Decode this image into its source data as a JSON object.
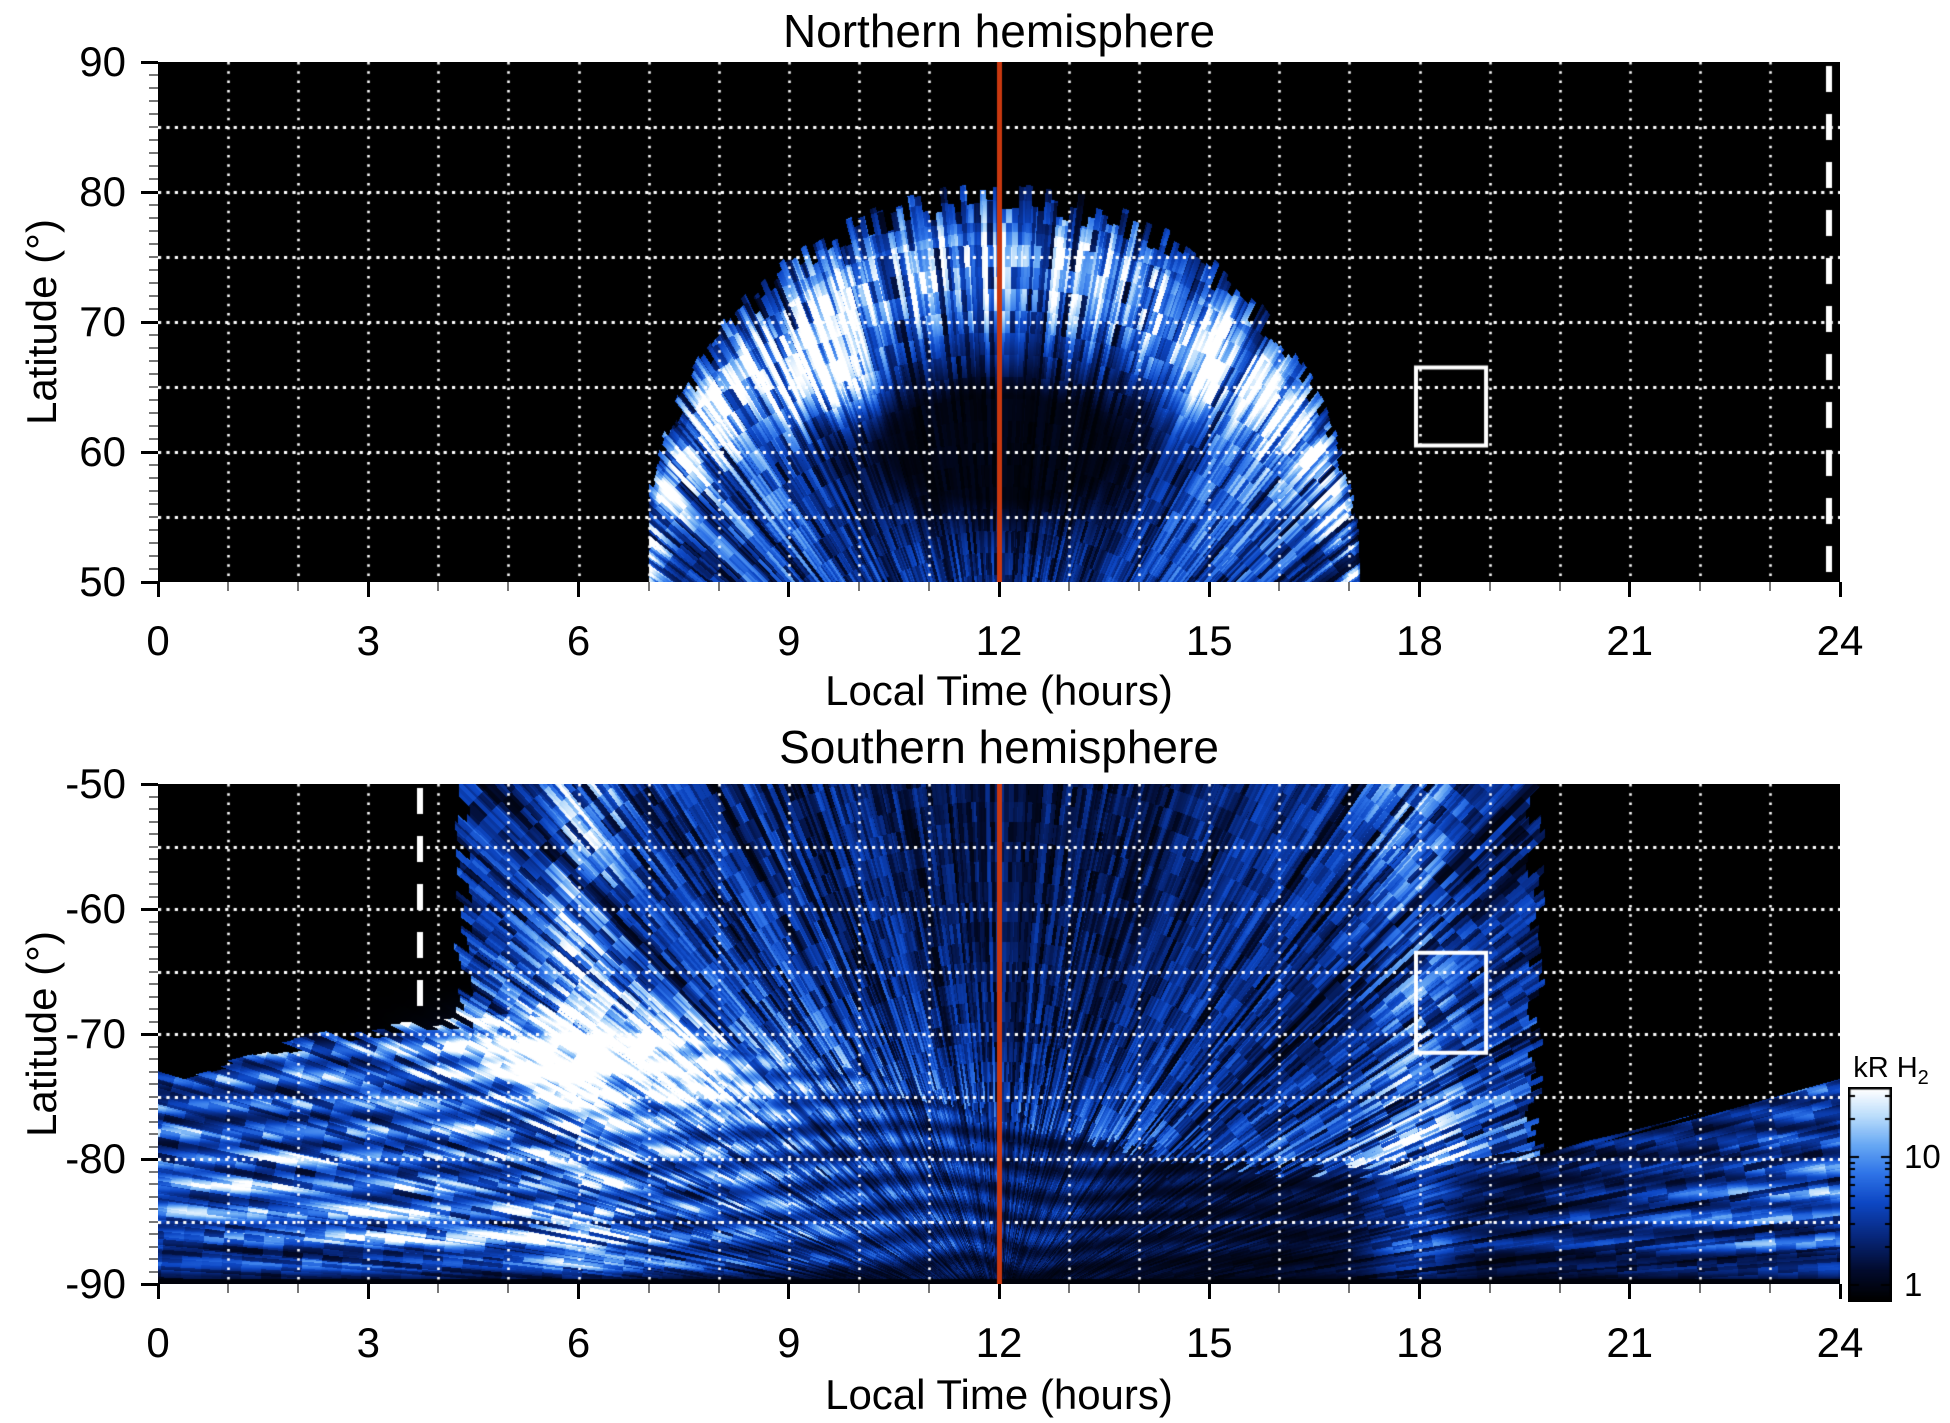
{
  "page": {
    "background": "#ffffff"
  },
  "chart_data": [
    {
      "panel": "north",
      "type": "heatmap",
      "title": "Northern hemisphere",
      "xlabel": "Local Time (hours)",
      "ylabel": "Latitude (°)",
      "xlim": [
        0,
        24
      ],
      "ylim": [
        50,
        90
      ],
      "x_tick_values": [
        0,
        3,
        6,
        9,
        12,
        15,
        18,
        21,
        24
      ],
      "x_tick_labels": [
        "0",
        "3",
        "6",
        "9",
        "12",
        "15",
        "18",
        "21",
        "24"
      ],
      "x_minor_step_hours": 1,
      "y_tick_values": [
        90,
        80,
        70,
        60,
        50
      ],
      "y_tick_labels": [
        "90",
        "80",
        "70",
        "60",
        "50"
      ],
      "y_minor_step_deg": 1,
      "grid": {
        "x_step_hours": 1,
        "y_step_deg": 5,
        "style": "dotted",
        "color": "#ffffff"
      },
      "noon_line_hour": 12,
      "dashed_line_hour": 23.85,
      "selection_box": {
        "hour_range": [
          17.95,
          18.95
        ],
        "lat_range": [
          60.5,
          66.5
        ]
      },
      "emission": {
        "pattern": "radial_scan_streaks",
        "local_time_coverage_hours": [
          7.0,
          17.3
        ],
        "dome": {
          "center_hour": 12,
          "peak_lat": 79.5,
          "half_width_hours": 5.15
        },
        "auroral_arc": {
          "offset_deg_below_edge": 5,
          "width_deg": 5,
          "peak_kR": 6
        },
        "dark_interior": {
          "center_hour": 12,
          "center_lat": 60.5,
          "sigma_hours": 2.6,
          "sigma_deg": 6
        },
        "bright_spot": {
          "hour": 9.45,
          "lat": 65.8,
          "sigma_hours": 0.75,
          "sigma_deg": 3.2,
          "peak_kR": 30
        },
        "secondary_arc": {
          "hour": 14.75,
          "lat": 66.3,
          "sigma_hours": 0.55,
          "sigma_deg": 3.8,
          "peak_kR": 14
        },
        "diffuse_kR": 2.5,
        "flank_boost": {
          "hours": [
            8.6,
            15.4
          ],
          "sigma_hours": 1.3,
          "center_lat": 57,
          "sigma_deg": 8,
          "peak_kR": 4
        }
      }
    },
    {
      "panel": "south",
      "type": "heatmap",
      "title": "Southern hemisphere",
      "xlabel": "Local Time (hours)",
      "ylabel": "Latitude (°)",
      "xlim": [
        0,
        24
      ],
      "ylim": [
        -90,
        -50
      ],
      "x_tick_values": [
        0,
        3,
        6,
        9,
        12,
        15,
        18,
        21,
        24
      ],
      "x_tick_labels": [
        "0",
        "3",
        "6",
        "9",
        "12",
        "15",
        "18",
        "21",
        "24"
      ],
      "x_minor_step_hours": 1,
      "y_tick_values": [
        -50,
        -60,
        -70,
        -80,
        -90
      ],
      "y_tick_labels": [
        "-50",
        "-60",
        "-70",
        "-80",
        "-90"
      ],
      "y_minor_step_deg": 1,
      "grid": {
        "x_step_hours": 1,
        "y_step_deg": 5,
        "style": "dotted",
        "color": "#ffffff"
      },
      "noon_line_hour": 12,
      "dashed_line_hour": 3.74,
      "selection_box": {
        "hour_range": [
          17.95,
          18.95
        ],
        "lat_range": [
          -71.5,
          -63.5
        ]
      },
      "emission": {
        "pattern": "radial_scan_streaks",
        "field_coverage_hours": [
          4.35,
          19.65
        ],
        "oval": {
          "mean_colat_deg": 15,
          "amplitude_colat_deg": 6,
          "max_extent_hour": 5,
          "ring_spacing_deg": 2.1
        },
        "dawn_band": {
          "hour": 6.05,
          "sigma_hours": 0.6,
          "peak_kR": 12
        },
        "dusk_band": {
          "hour": 17.9,
          "sigma_hours": 0.65,
          "peak_kR": 10
        },
        "bright_patch": {
          "hour": 6.2,
          "lat": -71.5,
          "sigma_hours": 1.5,
          "sigma_deg": 3.0,
          "peak_kR": 35
        },
        "bright_patch_tail": {
          "hour": 7.9,
          "lat": -74.5,
          "sigma_hours": 1.1,
          "sigma_deg": 2.5,
          "peak_kR": 15
        },
        "polar_dim_colat_deg": 3.2,
        "pole_black_colat_deg": 0.45,
        "diffuse_kR": 2.5
      }
    }
  ],
  "colorbar": {
    "title_main": "kR H",
    "title_sub": "2",
    "scale": "log",
    "min_kR": 0.78,
    "max_kR": 34,
    "tick_values": [
      10,
      1
    ],
    "tick_labels": [
      "10",
      "1"
    ],
    "minor_tick_values": [
      2,
      3,
      4,
      5,
      6,
      7,
      8,
      9,
      20,
      30
    ],
    "colormap_stops": [
      [
        0.0,
        "#000000"
      ],
      [
        0.14,
        "#020b2e"
      ],
      [
        0.3,
        "#07277c"
      ],
      [
        0.46,
        "#0d47c4"
      ],
      [
        0.6,
        "#2f74e8"
      ],
      [
        0.74,
        "#6aaaf4"
      ],
      [
        0.87,
        "#b9dcfb"
      ],
      [
        1.0,
        "#ffffff"
      ]
    ]
  },
  "style_colors": {
    "noon_line": "#c9380f",
    "grid": "#ffffff",
    "dashed_line": "#ffffff",
    "selection_box": "#ffffff",
    "axis_text": "#000000"
  }
}
